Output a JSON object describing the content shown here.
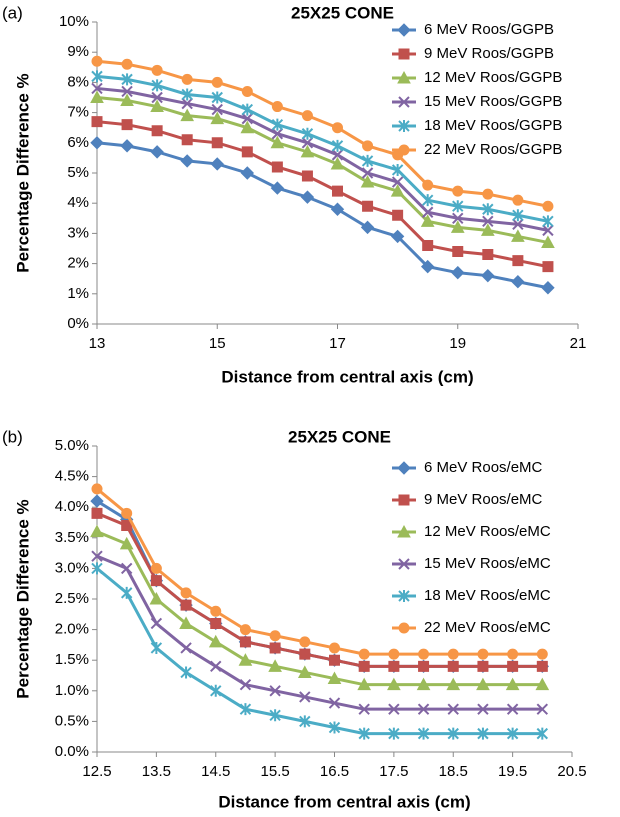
{
  "chart_data": [
    {
      "type": "line",
      "panel": "(a)",
      "title": "25X25 CONE",
      "xlabel": "Distance from central axis (cm)",
      "ylabel": "Percentage Difference %",
      "x": [
        13,
        13.5,
        14,
        14.5,
        15,
        15.5,
        16,
        16.5,
        17,
        17.5,
        18,
        18.5,
        19,
        19.5,
        20,
        20.5
      ],
      "xlim": [
        13,
        21
      ],
      "xticks": [
        13,
        15,
        17,
        19,
        21
      ],
      "ylim": [
        0,
        10
      ],
      "yticks": [
        {
          "value": 0,
          "label": "0%"
        },
        {
          "value": 1,
          "label": "1%"
        },
        {
          "value": 2,
          "label": "2%"
        },
        {
          "value": 3,
          "label": "3%"
        },
        {
          "value": 4,
          "label": "4%"
        },
        {
          "value": 5,
          "label": "5%"
        },
        {
          "value": 6,
          "label": "6%"
        },
        {
          "value": 7,
          "label": "7%"
        },
        {
          "value": 8,
          "label": "8%"
        },
        {
          "value": 9,
          "label": "9%"
        },
        {
          "value": 10,
          "label": "10%"
        }
      ],
      "series": [
        {
          "name": "6 MeV Roos/GGPB",
          "color": "#4f81bd",
          "marker": "diamond",
          "values": [
            6.0,
            5.9,
            5.7,
            5.4,
            5.3,
            5.0,
            4.5,
            4.2,
            3.8,
            3.2,
            2.9,
            1.9,
            1.7,
            1.6,
            1.4,
            1.2
          ]
        },
        {
          "name": "9 MeV Roos/GGPB",
          "color": "#c0504d",
          "marker": "square",
          "values": [
            6.7,
            6.6,
            6.4,
            6.1,
            6.0,
            5.7,
            5.2,
            4.9,
            4.4,
            3.9,
            3.6,
            2.6,
            2.4,
            2.3,
            2.1,
            1.9
          ]
        },
        {
          "name": "12 MeV Roos/GGPB",
          "color": "#9bbb59",
          "marker": "triangle",
          "values": [
            7.5,
            7.4,
            7.2,
            6.9,
            6.8,
            6.5,
            6.0,
            5.7,
            5.3,
            4.7,
            4.4,
            3.4,
            3.2,
            3.1,
            2.9,
            2.7
          ]
        },
        {
          "name": "15 MeV Roos/GGPB",
          "color": "#8064a2",
          "marker": "x",
          "values": [
            7.8,
            7.7,
            7.5,
            7.3,
            7.1,
            6.8,
            6.3,
            6.0,
            5.6,
            5.0,
            4.7,
            3.7,
            3.5,
            3.4,
            3.3,
            3.1
          ]
        },
        {
          "name": "18 MeV Roos/GGPB",
          "color": "#4bacc6",
          "marker": "star",
          "values": [
            8.2,
            8.1,
            7.9,
            7.6,
            7.5,
            7.1,
            6.6,
            6.3,
            5.9,
            5.4,
            5.1,
            4.1,
            3.9,
            3.8,
            3.6,
            3.4
          ]
        },
        {
          "name": "22 MeV Roos/GGPB",
          "color": "#f79646",
          "marker": "circle",
          "values": [
            8.7,
            8.6,
            8.4,
            8.1,
            8.0,
            7.7,
            7.2,
            6.9,
            6.5,
            5.9,
            5.6,
            4.6,
            4.4,
            4.3,
            4.1,
            3.9
          ]
        }
      ]
    },
    {
      "type": "line",
      "panel": "(b)",
      "title": "25X25 CONE",
      "xlabel": "Distance from central axis (cm)",
      "ylabel": "Percentage Difference %",
      "x": [
        12.5,
        13,
        13.5,
        14,
        14.5,
        15,
        15.5,
        16,
        16.5,
        17,
        17.5,
        18,
        18.5,
        19,
        19.5,
        20
      ],
      "xlim": [
        12.5,
        20.5
      ],
      "xticks": [
        12.5,
        13.5,
        14.5,
        15.5,
        16.5,
        17.5,
        18.5,
        19.5,
        20.5
      ],
      "ylim": [
        0,
        5
      ],
      "yticks": [
        {
          "value": 0,
          "label": "0.0%"
        },
        {
          "value": 0.5,
          "label": "0.5%"
        },
        {
          "value": 1,
          "label": "1.0%"
        },
        {
          "value": 1.5,
          "label": "1.5%"
        },
        {
          "value": 2,
          "label": "2.0%"
        },
        {
          "value": 2.5,
          "label": "2.5%"
        },
        {
          "value": 3,
          "label": "3.0%"
        },
        {
          "value": 3.5,
          "label": "3.5%"
        },
        {
          "value": 4,
          "label": "4.0%"
        },
        {
          "value": 4.5,
          "label": "4.5%"
        },
        {
          "value": 5,
          "label": "5.0%"
        }
      ],
      "series": [
        {
          "name": "6 MeV Roos/eMC",
          "color": "#4f81bd",
          "marker": "diamond",
          "values": [
            4.1,
            3.8,
            2.8,
            2.4,
            2.1,
            1.8,
            1.7,
            1.6,
            1.5,
            1.4,
            1.4,
            1.4,
            1.4,
            1.4,
            1.4,
            1.4
          ]
        },
        {
          "name": "9 MeV Roos/eMC",
          "color": "#c0504d",
          "marker": "square",
          "values": [
            3.9,
            3.7,
            2.8,
            2.4,
            2.1,
            1.8,
            1.7,
            1.6,
            1.5,
            1.4,
            1.4,
            1.4,
            1.4,
            1.4,
            1.4,
            1.4
          ]
        },
        {
          "name": "12 MeV Roos/eMC",
          "color": "#9bbb59",
          "marker": "triangle",
          "values": [
            3.6,
            3.4,
            2.5,
            2.1,
            1.8,
            1.5,
            1.4,
            1.3,
            1.2,
            1.1,
            1.1,
            1.1,
            1.1,
            1.1,
            1.1,
            1.1
          ]
        },
        {
          "name": "15 MeV Roos/eMC",
          "color": "#8064a2",
          "marker": "x",
          "values": [
            3.2,
            3.0,
            2.1,
            1.7,
            1.4,
            1.1,
            1.0,
            0.9,
            0.8,
            0.7,
            0.7,
            0.7,
            0.7,
            0.7,
            0.7,
            0.7
          ]
        },
        {
          "name": "18 MeV Roos/eMC",
          "color": "#4bacc6",
          "marker": "star",
          "values": [
            3.0,
            2.6,
            1.7,
            1.3,
            1.0,
            0.7,
            0.6,
            0.5,
            0.4,
            0.3,
            0.3,
            0.3,
            0.3,
            0.3,
            0.3,
            0.3
          ]
        },
        {
          "name": "22 MeV Roos/eMC",
          "color": "#f79646",
          "marker": "circle",
          "values": [
            4.3,
            3.9,
            3.0,
            2.6,
            2.3,
            2.0,
            1.9,
            1.8,
            1.7,
            1.6,
            1.6,
            1.6,
            1.6,
            1.6,
            1.6,
            1.6
          ]
        }
      ]
    }
  ]
}
